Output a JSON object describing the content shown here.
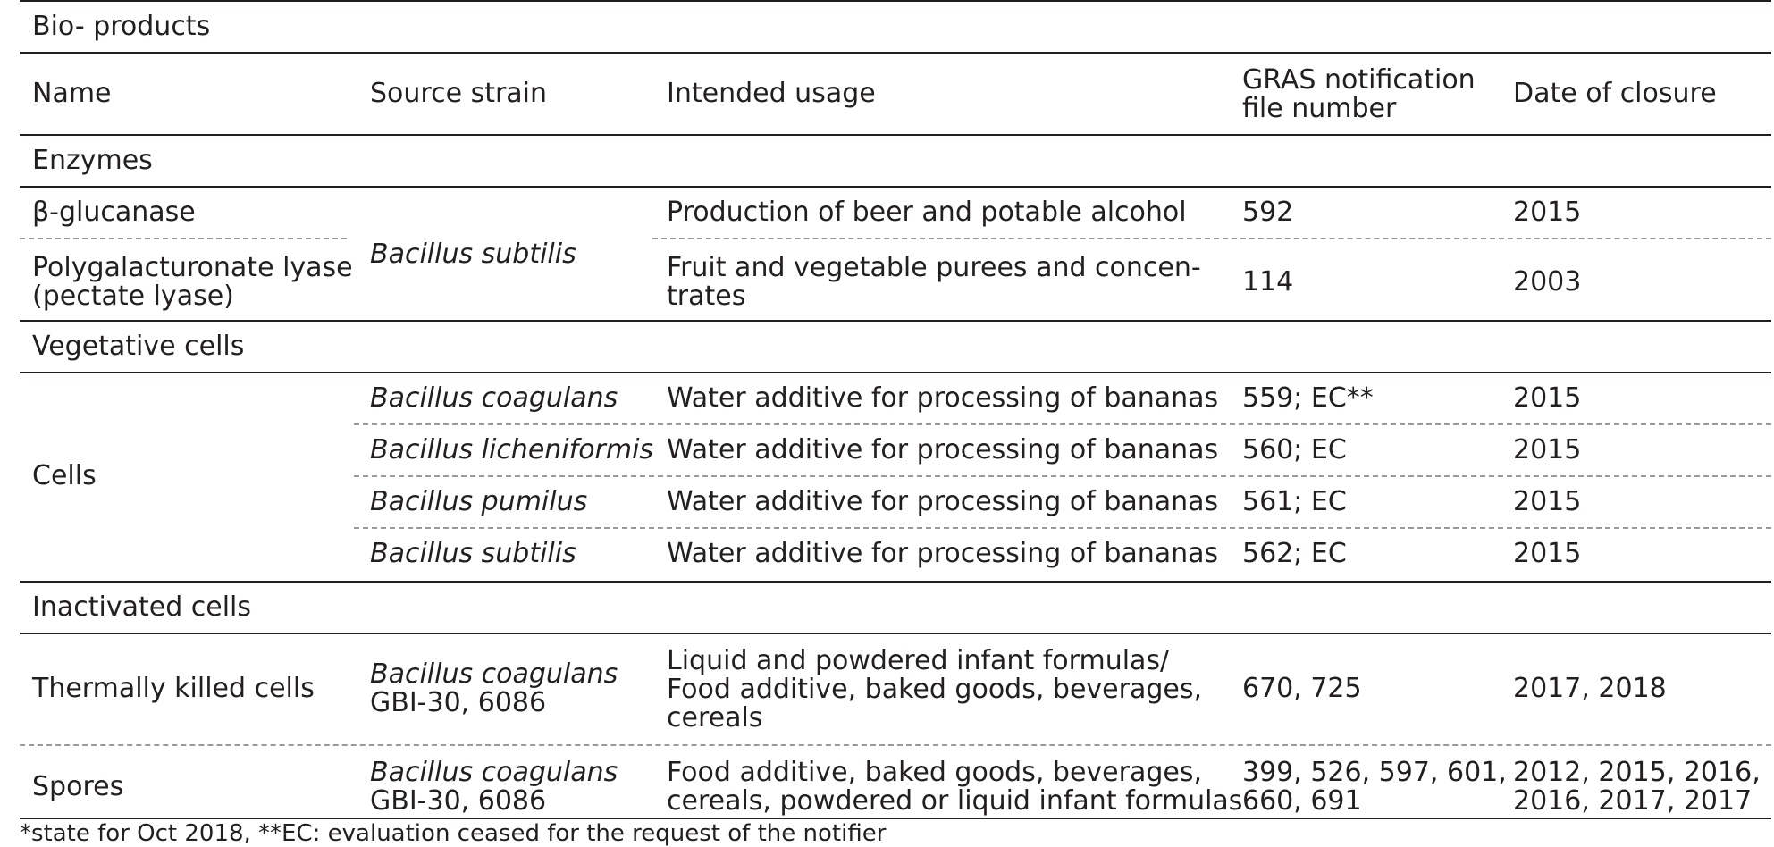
{
  "title": "Bio- products",
  "headers": {
    "name": "Name",
    "source": "Source strain",
    "usage": "Intended usage",
    "gras_line1": "GRAS notification",
    "gras_line2": "file number",
    "date": "Date of closure"
  },
  "sections": {
    "enzymes": "Enzymes",
    "vegetative": "Vegetative cells",
    "inactivated": "Inactivated cells"
  },
  "enzymes": {
    "source": "Bacillus subtilis",
    "rows": [
      {
        "name": "β-glucanase",
        "usage": "Production of beer and potable alcohol",
        "gras": "592",
        "date": "2015"
      },
      {
        "name_line1": "Polygalacturonate lyase",
        "name_line2": "(pectate lyase)",
        "usage_line1": "Fruit and vegetable purees and concen-",
        "usage_line2": "trates",
        "gras": "114",
        "date": "2003"
      }
    ]
  },
  "vegetative": {
    "name": "Cells",
    "rows": [
      {
        "source": "Bacillus coagulans",
        "usage": "Water additive for processing of bananas",
        "gras": "559; EC**",
        "date": "2015"
      },
      {
        "source": "Bacillus licheniformis",
        "usage": "Water additive for processing of bananas",
        "gras": "560; EC",
        "date": "2015"
      },
      {
        "source": "Bacillus pumilus",
        "usage": "Water additive for processing of bananas",
        "gras": "561; EC",
        "date": "2015"
      },
      {
        "source": "Bacillus subtilis",
        "usage": "Water additive for processing of bananas",
        "gras": "562; EC",
        "date": "2015"
      }
    ]
  },
  "inactivated": {
    "rows": [
      {
        "name": "Thermally killed cells",
        "source_line1": "Bacillus coagulans",
        "source_line2": "GBI-30, 6086",
        "usage_line1": "Liquid and powdered infant formulas/",
        "usage_line2": "Food additive, baked goods, beverages,",
        "usage_line3": "cereals",
        "gras": "670, 725",
        "date": "2017, 2018"
      },
      {
        "name": "Spores",
        "source_line1": "Bacillus coagulans",
        "source_line2": "GBI-30, 6086",
        "usage_line1": "Food additive, baked goods, beverages,",
        "usage_line2": "cereals, powdered or liquid infant formulas",
        "gras_line1": "399, 526, 597, 601,",
        "gras_line2": "660, 691",
        "date_line1": "2012, 2015, 2016,",
        "date_line2": "2016, 2017, 2017"
      }
    ]
  },
  "footnote": "*state for Oct 2018, **EC: evaluation ceased for the request of the notifier"
}
